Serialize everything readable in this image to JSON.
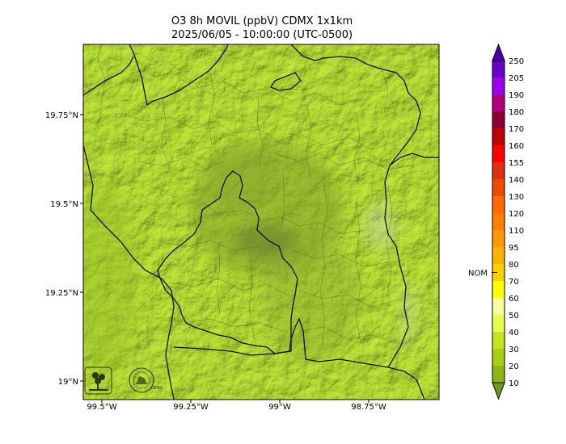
{
  "title": "O3 8h MOVIL (ppbV) CDMX 1x1km",
  "subtitle": "2025/06/05 - 10:00:00 (UTC-0500)",
  "map": {
    "lat_ticks": [
      "19.75°N",
      "19.5°N",
      "19.25°N",
      "19°N"
    ],
    "lon_ticks": [
      "99.5°W",
      "99.25°W",
      "99°W",
      "98.75°W"
    ],
    "logos": [
      "SEDEMA",
      "CIUDAD DE MÉXICO"
    ]
  },
  "colorbar": {
    "marker_label": "NOM",
    "marker_value": 70,
    "levels": [
      10,
      20,
      30,
      40,
      50,
      60,
      70,
      80,
      95,
      110,
      120,
      130,
      140,
      155,
      160,
      170,
      180,
      190,
      205,
      250
    ],
    "colors": [
      "#6f9a1a",
      "#8db516",
      "#a9cf12",
      "#c4e618",
      "#e6ff4e",
      "#f5ff9e",
      "#ffff00",
      "#ffd000",
      "#ffb300",
      "#ff9900",
      "#ff7f00",
      "#ff6a00",
      "#f04a00",
      "#e03010",
      "#ff0000",
      "#c00000",
      "#8c0038",
      "#b0007a",
      "#9900ee",
      "#6a00c8",
      "#5000a8"
    ],
    "colors_legend": "colors[0] = below-10 extension triangle, colors[1..19] = bands between successive levels, colors[20] = above-250 extension triangle"
  }
}
